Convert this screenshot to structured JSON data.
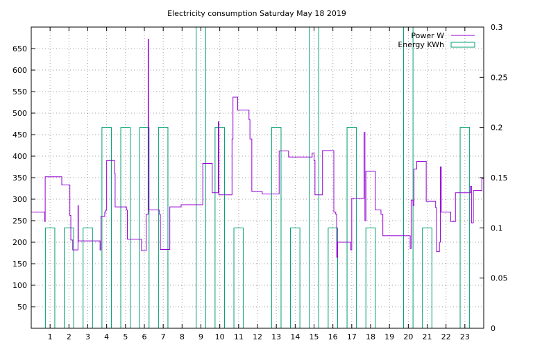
{
  "chart_data": {
    "type": "line",
    "title": "Electricity consumption Saturday May 18 2019",
    "xlabel": "",
    "ylabel": "",
    "y2label": "",
    "xlim": [
      0,
      24
    ],
    "ylim": [
      0,
      700
    ],
    "y2lim": [
      0,
      0.3
    ],
    "x_ticks": [
      1,
      2,
      3,
      4,
      5,
      6,
      7,
      8,
      9,
      10,
      11,
      12,
      13,
      14,
      15,
      16,
      17,
      18,
      19,
      20,
      21,
      22,
      23
    ],
    "y_ticks": [
      50,
      100,
      150,
      200,
      250,
      300,
      350,
      400,
      450,
      500,
      550,
      600,
      650
    ],
    "y2_ticks": [
      0,
      0.05,
      0.1,
      0.15,
      0.2,
      0.25,
      0.3
    ],
    "y2_tick_labels": [
      "0",
      "0.05",
      "0.1",
      "0.15",
      "0.2",
      "0.25",
      "0.3"
    ],
    "grid": true,
    "legend_position": "top-right",
    "colors": {
      "power": "#9400d3",
      "energy": "#009e73"
    },
    "series": [
      {
        "name": "Power W",
        "axis": "left",
        "style": "steps",
        "points": [
          [
            0,
            270
          ],
          [
            0.7,
            270
          ],
          [
            0.72,
            248
          ],
          [
            0.74,
            352
          ],
          [
            1.6,
            352
          ],
          [
            1.62,
            333
          ],
          [
            2.0,
            333
          ],
          [
            2.05,
            262
          ],
          [
            2.1,
            205
          ],
          [
            2.2,
            182
          ],
          [
            2.45,
            182
          ],
          [
            2.48,
            285
          ],
          [
            2.5,
            203
          ],
          [
            3.6,
            203
          ],
          [
            3.65,
            182
          ],
          [
            3.7,
            260
          ],
          [
            3.9,
            270
          ],
          [
            3.95,
            275
          ],
          [
            4.0,
            390
          ],
          [
            4.4,
            390
          ],
          [
            4.42,
            360
          ],
          [
            4.45,
            282
          ],
          [
            5.0,
            282
          ],
          [
            5.05,
            275
          ],
          [
            5.1,
            207
          ],
          [
            5.8,
            207
          ],
          [
            5.85,
            180
          ],
          [
            6.05,
            180
          ],
          [
            6.1,
            265
          ],
          [
            6.2,
            672
          ],
          [
            6.22,
            275
          ],
          [
            6.75,
            275
          ],
          [
            6.8,
            265
          ],
          [
            6.85,
            183
          ],
          [
            7.3,
            183
          ],
          [
            7.35,
            282
          ],
          [
            7.9,
            282
          ],
          [
            7.95,
            287
          ],
          [
            9.05,
            287
          ],
          [
            9.1,
            383
          ],
          [
            9.55,
            383
          ],
          [
            9.6,
            315
          ],
          [
            9.9,
            315
          ],
          [
            9.92,
            480
          ],
          [
            9.95,
            310
          ],
          [
            10.6,
            310
          ],
          [
            10.65,
            440
          ],
          [
            10.7,
            537
          ],
          [
            10.9,
            537
          ],
          [
            10.95,
            507
          ],
          [
            11.5,
            507
          ],
          [
            11.55,
            485
          ],
          [
            11.6,
            440
          ],
          [
            11.7,
            318
          ],
          [
            12.2,
            318
          ],
          [
            12.25,
            312
          ],
          [
            13.1,
            312
          ],
          [
            13.15,
            412
          ],
          [
            13.6,
            412
          ],
          [
            13.65,
            398
          ],
          [
            14.85,
            398
          ],
          [
            14.9,
            407
          ],
          [
            15.0,
            390
          ],
          [
            15.05,
            310
          ],
          [
            15.4,
            310
          ],
          [
            15.45,
            413
          ],
          [
            16.0,
            413
          ],
          [
            16.05,
            270
          ],
          [
            16.15,
            265
          ],
          [
            16.2,
            165
          ],
          [
            16.25,
            200
          ],
          [
            16.9,
            200
          ],
          [
            16.95,
            182
          ],
          [
            17.0,
            302
          ],
          [
            17.6,
            302
          ],
          [
            17.65,
            455
          ],
          [
            17.7,
            250
          ],
          [
            17.75,
            365
          ],
          [
            18.2,
            365
          ],
          [
            18.25,
            275
          ],
          [
            18.5,
            275
          ],
          [
            18.55,
            265
          ],
          [
            18.65,
            215
          ],
          [
            20.05,
            215
          ],
          [
            20.1,
            185
          ],
          [
            20.15,
            298
          ],
          [
            20.25,
            285
          ],
          [
            20.3,
            370
          ],
          [
            20.45,
            388
          ],
          [
            20.9,
            388
          ],
          [
            20.95,
            295
          ],
          [
            21.4,
            295
          ],
          [
            21.45,
            280
          ],
          [
            21.5,
            178
          ],
          [
            21.65,
            200
          ],
          [
            21.7,
            375
          ],
          [
            21.75,
            270
          ],
          [
            22.2,
            270
          ],
          [
            22.25,
            248
          ],
          [
            22.4,
            248
          ],
          [
            22.5,
            315
          ],
          [
            23.25,
            315
          ],
          [
            23.3,
            330
          ],
          [
            23.35,
            245
          ],
          [
            23.45,
            320
          ],
          [
            23.85,
            320
          ],
          [
            23.9,
            348
          ],
          [
            24,
            348
          ]
        ]
      },
      {
        "name": "Energy KWh",
        "axis": "right",
        "style": "bars",
        "values": [
          0.1,
          0.1,
          0.1,
          0.2,
          0.2,
          0.2,
          0.2,
          0,
          0.3,
          0.2,
          0.1,
          0,
          0.2,
          0.1,
          0.3,
          0.1,
          0.2,
          0.1,
          0,
          0.3,
          0.1,
          0,
          0.2,
          0
        ],
        "bar_starts": [
          0.75,
          1.75,
          2.75,
          3.75,
          4.75,
          5.75,
          6.75,
          7.75,
          8.75,
          9.75,
          10.75,
          11.75,
          12.75,
          13.75,
          14.75,
          15.75,
          16.75,
          17.75,
          18.75,
          19.75,
          20.75,
          21.75,
          22.75,
          23.75
        ],
        "bar_width": 0.5
      }
    ]
  }
}
